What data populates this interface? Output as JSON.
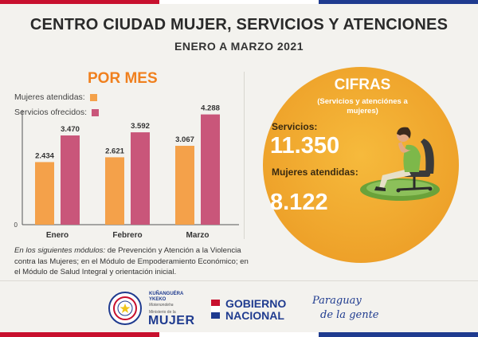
{
  "header": {
    "title": "CENTRO CIUDAD MUJER, SERVICIOS Y ATENCIONES",
    "subtitle": "ENERO A MARZO 2021"
  },
  "por_mes": "POR MES",
  "legend": {
    "mujeres": "Mujeres atendidas:",
    "servicios": "Servicios ofrecidos:"
  },
  "colors": {
    "mujeres": "#f4a14a",
    "servicios": "#c9567a",
    "accent_orange": "#f0801e",
    "circle": "#f2a630",
    "navy": "#1f3b8f",
    "red": "#c8102e"
  },
  "chart_data": {
    "type": "bar",
    "categories": [
      "Enero",
      "Febrero",
      "Marzo"
    ],
    "series": [
      {
        "name": "Mujeres atendidas",
        "values": [
          2434,
          2621,
          3067
        ],
        "labels": [
          "2.434",
          "2.621",
          "3.067"
        ]
      },
      {
        "name": "Servicios ofrecidos",
        "values": [
          3470,
          3592,
          4288
        ],
        "labels": [
          "3.470",
          "3.592",
          "4.288"
        ]
      }
    ],
    "y_zero_label": "0",
    "ylim": [
      0,
      4400
    ],
    "title": "POR MES",
    "grid": false,
    "legend": "top-left"
  },
  "note": {
    "lead": "En los siguientes módulos:",
    "body": " de Prevención y Atención a la Violencia contra las Mujeres; en el Módulo de Empoderamiento Económico; en el Módulo de Salud Integral y orientación inicial."
  },
  "cifras": {
    "title": "CIFRAS",
    "subtitle": "(Servicios y atenciónes a mujeres)",
    "servicios_label": "Servicios:",
    "servicios_value": "11.350",
    "mujeres_label": "Mujeres atendidas:",
    "mujeres_value": "8.122"
  },
  "footer": {
    "org_line1": "KUÑANGUÉRA",
    "org_line2": "YKEKO",
    "org_line3": "Motenondeha",
    "ministerio": "Ministerio de la",
    "mujer": "MUJER",
    "gobierno1": "GOBIERNO",
    "gobierno2": "NACIONAL",
    "slogan1": "Paraguay",
    "slogan2": "de la gente"
  }
}
